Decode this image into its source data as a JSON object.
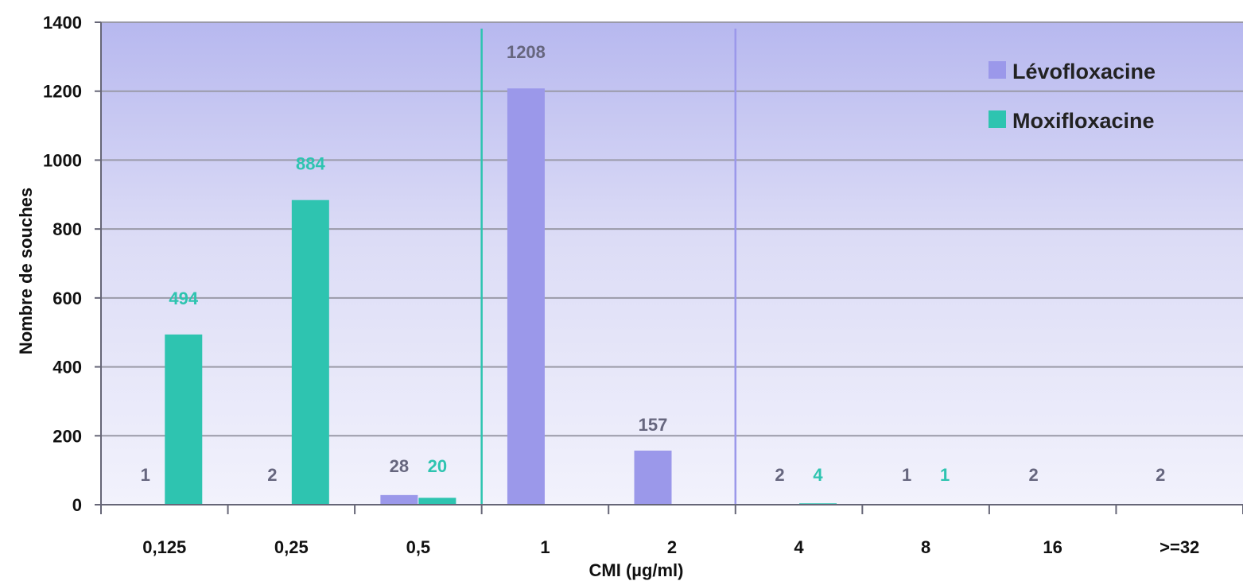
{
  "chart_data": {
    "type": "bar",
    "title": "",
    "xlabel": "CMI (µg/ml)",
    "ylabel": "Nombre de souches",
    "categories": [
      "0,125",
      "0,25",
      "0,5",
      "1",
      "2",
      "4",
      "8",
      "16",
      ">=32"
    ],
    "ylim": [
      0,
      1400
    ],
    "yticks": [
      "0",
      "200",
      "400",
      "600",
      "800",
      "1000",
      "1200",
      "1400"
    ],
    "grid": true,
    "legend_position": "top-right",
    "series": [
      {
        "name": "Lévofloxacine",
        "color": "#9b98ea",
        "values": [
          1,
          2,
          28,
          1208,
          157,
          2,
          1,
          2,
          2
        ],
        "labels": [
          "1",
          "2",
          "28",
          "1208",
          "157",
          "2",
          "1",
          "2",
          "2"
        ]
      },
      {
        "name": "Moxifloxacine",
        "color": "#2ec4b0",
        "values": [
          494,
          884,
          20,
          0,
          0,
          4,
          1,
          0,
          0
        ],
        "labels": [
          "494",
          "884",
          "20",
          "",
          "",
          "4",
          "1",
          "",
          ""
        ]
      }
    ],
    "reference_lines": [
      {
        "between_categories": [
          2,
          3
        ],
        "color": "#2ec4b0"
      },
      {
        "between_categories": [
          4,
          5
        ],
        "color": "#9b98ea"
      }
    ],
    "background": {
      "shaded_top_color": "#b7b8ef",
      "shaded_bottom_color": "#f2f2fc"
    }
  }
}
